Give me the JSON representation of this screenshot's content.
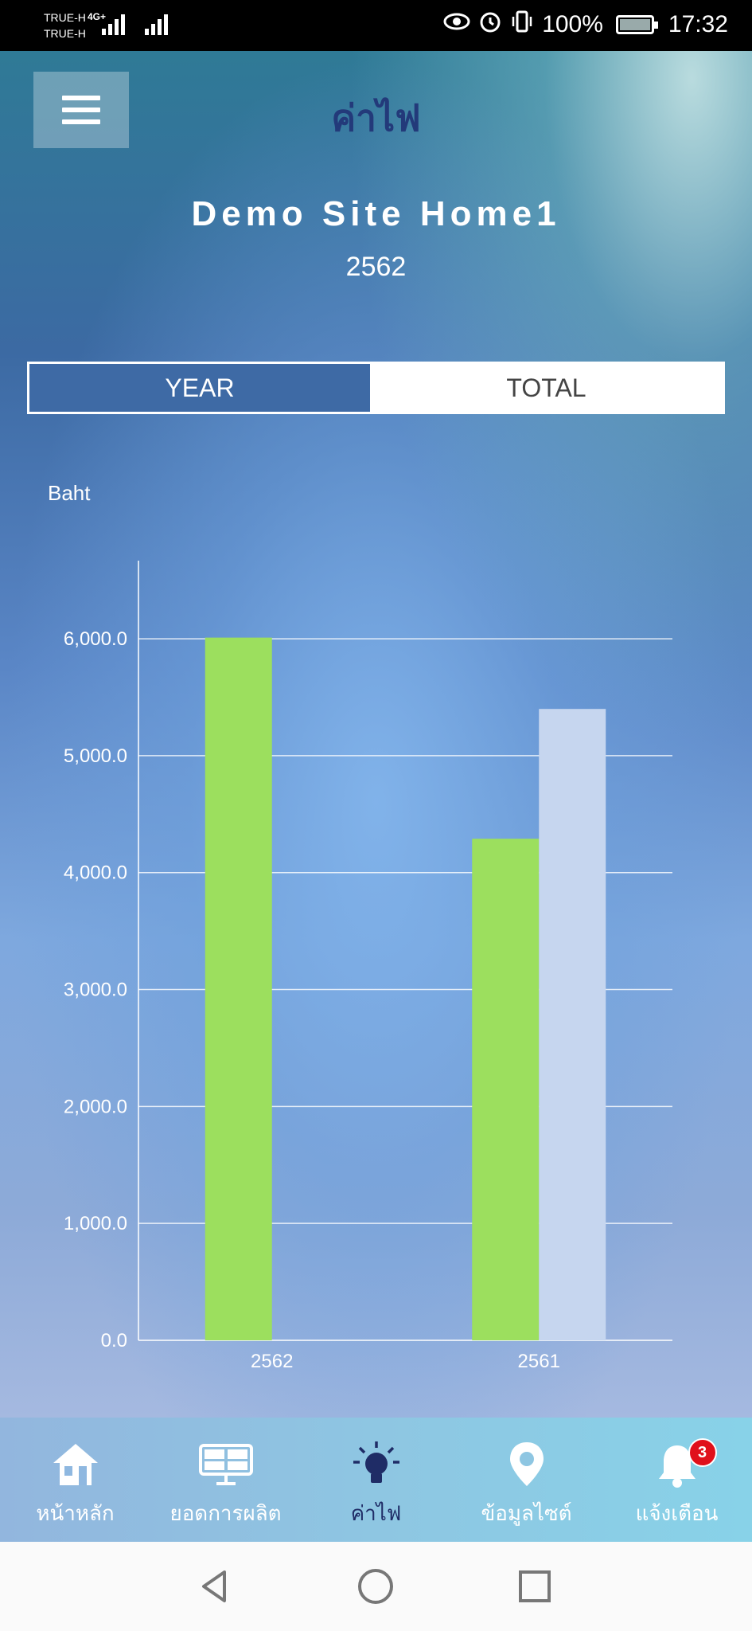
{
  "status_bar": {
    "carrier_1": "TRUE-H",
    "carrier_2": "TRUE-H",
    "network": "4G+",
    "battery": "100%",
    "time": "17:32",
    "icons": [
      "eye-icon",
      "alarm-icon",
      "vibrate-icon",
      "battery-icon"
    ]
  },
  "header": {
    "menu_icon": "hamburger-icon",
    "title": "ค่าไฟ",
    "site_name": "Demo Site Home1",
    "year": "2562"
  },
  "tabs": [
    {
      "label": "YEAR",
      "active": true
    },
    {
      "label": "TOTAL",
      "active": false
    }
  ],
  "chart_data": {
    "type": "bar",
    "ylabel": "Baht",
    "categories": [
      "2562",
      "2561"
    ],
    "series": [
      {
        "values": [
          6010,
          4290
        ],
        "color": "#9cdf5e"
      },
      {
        "values": [
          null,
          5400
        ],
        "color": "#c6d6ef"
      }
    ],
    "ylim": [
      0,
      6600
    ],
    "yticks": [
      "0.0",
      "1,000.0",
      "2,000.0",
      "3,000.0",
      "4,000.0",
      "5,000.0",
      "6,000.0"
    ],
    "grid": true
  },
  "bottom_nav": [
    {
      "label": "หน้าหลัก",
      "icon": "home-icon",
      "active": false
    },
    {
      "label": "ยอดการผลิต",
      "icon": "solar-panel-icon",
      "active": false
    },
    {
      "label": "ค่าไฟ",
      "icon": "lightbulb-icon",
      "active": true
    },
    {
      "label": "ข้อมูลไซต์",
      "icon": "location-pin-icon",
      "active": false
    },
    {
      "label": "แจ้งเตือน",
      "icon": "bell-icon",
      "active": false,
      "badge": "3"
    }
  ],
  "system_nav": [
    "back-icon",
    "home-circle-icon",
    "recents-icon"
  ]
}
